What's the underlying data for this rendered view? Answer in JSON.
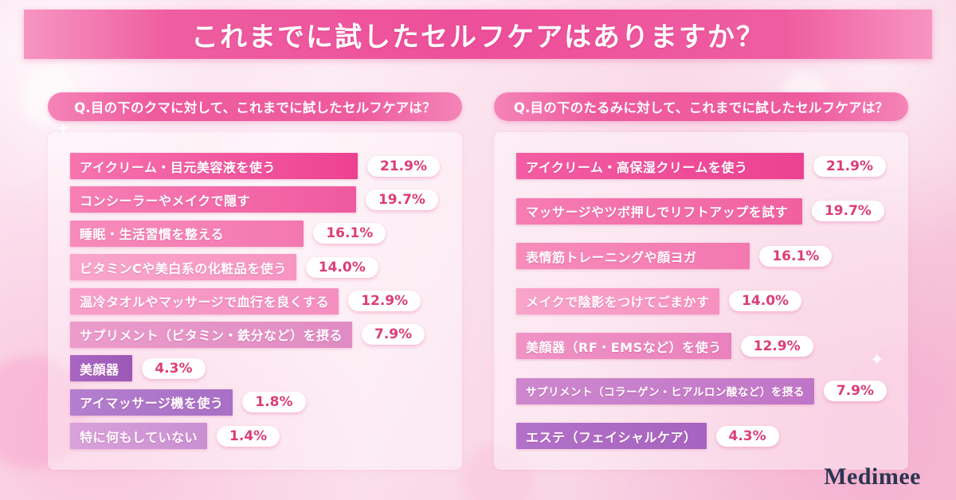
{
  "page": {
    "title": "これまでに試したセルフケアはありますか？",
    "brand": "Medimee"
  },
  "colors": {
    "banner_pink": "#ed4f9a",
    "badge_text": "#dc3d78",
    "background_pink": "#f8cfe1",
    "brand_navy": "#2a3550"
  },
  "chart_data": [
    {
      "type": "bar",
      "title": "Q.目の下のクマに対して、これまでに試したセルフケアは？",
      "categories": [
        "アイクリーム・目元美容液を使う",
        "コンシーラーやメイクで隠す",
        "睡眠・生活習慣を整える",
        "ビタミンCや美白系の化粧品を使う",
        "温冷タオルやマッサージで血行を良くする",
        "サプリメント（ビタミン・鉄分など）を摂る",
        "美顔器",
        "アイマッサージ機を使う",
        "特に何もしていない"
      ],
      "values": [
        21.9,
        19.7,
        16.1,
        14.0,
        12.9,
        7.9,
        4.3,
        1.8,
        1.4
      ],
      "labels": [
        "21.9%",
        "19.7%",
        "16.1%",
        "14.0%",
        "12.9%",
        "7.9%",
        "4.3%",
        "1.8%",
        "1.4%"
      ],
      "bar_colors": [
        [
          "#f873af",
          "#ed4191"
        ],
        [
          "#f77fb4",
          "#f0599f"
        ],
        [
          "#f78bbb",
          "#f478b0"
        ],
        [
          "#f9a6cb",
          "#f795c2"
        ],
        [
          "#f7a0c9",
          "#f48fc0"
        ],
        [
          "#eb9cca",
          "#e08cc4"
        ],
        [
          "#a867c2",
          "#9c58b8"
        ],
        [
          "#b37fce",
          "#a76fc6"
        ],
        [
          "#d8a2da",
          "#c98fd2"
        ]
      ],
      "xlabel": "",
      "ylabel": "",
      "xlim": [
        0,
        22
      ],
      "unit": "%",
      "legend": "none",
      "grid": false
    },
    {
      "type": "bar",
      "title": "Q.目の下のたるみに対して、これまでに試したセルフケアは？",
      "categories": [
        "アイクリーム・高保湿クリームを使う",
        "マッサージやツボ押しでリフトアップを試す",
        "表情筋トレーニングや顔ヨガ",
        "メイクで陰影をつけてごまかす",
        "美顔器（RF・EMSなど）を使う",
        "サプリメント（コラーゲン・ヒアルロン酸など）を摂る",
        "エステ（フェイシャルケア）"
      ],
      "values": [
        21.9,
        19.7,
        16.1,
        14.0,
        12.9,
        7.9,
        4.3
      ],
      "labels": [
        "21.9%",
        "19.7%",
        "16.1%",
        "14.0%",
        "12.9%",
        "7.9%",
        "4.3%"
      ],
      "bar_colors": [
        [
          "#f35da2",
          "#ec4192"
        ],
        [
          "#f67db3",
          "#f0609f"
        ],
        [
          "#f78cbb",
          "#f478b1"
        ],
        [
          "#f9a4ca",
          "#f792c0"
        ],
        [
          "#f093c5",
          "#e981bd"
        ],
        [
          "#cd87cd",
          "#c076c8"
        ],
        [
          "#b271c9",
          "#a663c0"
        ]
      ],
      "xlabel": "",
      "ylabel": "",
      "xlim": [
        0,
        22
      ],
      "unit": "%",
      "legend": "none",
      "grid": false
    }
  ]
}
